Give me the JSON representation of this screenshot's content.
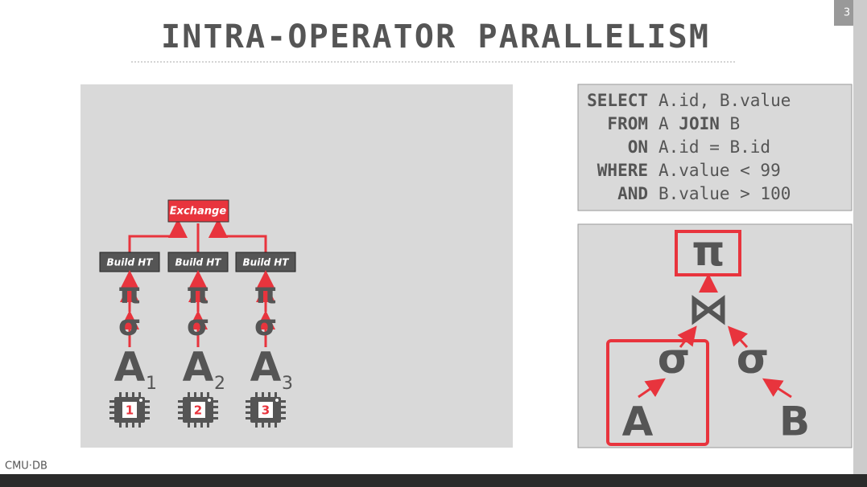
{
  "title": "INTRA-OPERATOR PARALLELISM",
  "page_number": "3",
  "left_plan": {
    "exchange": "Exchange",
    "workers": [
      {
        "build": "Build HT",
        "projection": "π",
        "selection": "σ",
        "table": "A",
        "partition": "1",
        "core": "1"
      },
      {
        "build": "Build HT",
        "projection": "π",
        "selection": "σ",
        "table": "A",
        "partition": "2",
        "core": "2"
      },
      {
        "build": "Build HT",
        "projection": "π",
        "selection": "σ",
        "table": "A",
        "partition": "3",
        "core": "3"
      }
    ]
  },
  "query": {
    "lines": [
      {
        "keyword": "SELECT",
        "text": "A.id, B.value"
      },
      {
        "keyword": "FROM",
        "text": "A",
        "join": "JOIN",
        "text2": "B"
      },
      {
        "keyword": "ON",
        "text": "A.id = B.id"
      },
      {
        "keyword": "WHERE",
        "text": "A.value < 99"
      },
      {
        "keyword": "AND",
        "text": "B.value > 100"
      }
    ]
  },
  "tree": {
    "projection": "π",
    "join": "⋈",
    "left_selection": "σ",
    "right_selection": "σ",
    "left_table": "A",
    "right_table": "B"
  },
  "footer": "CMU·DB"
}
